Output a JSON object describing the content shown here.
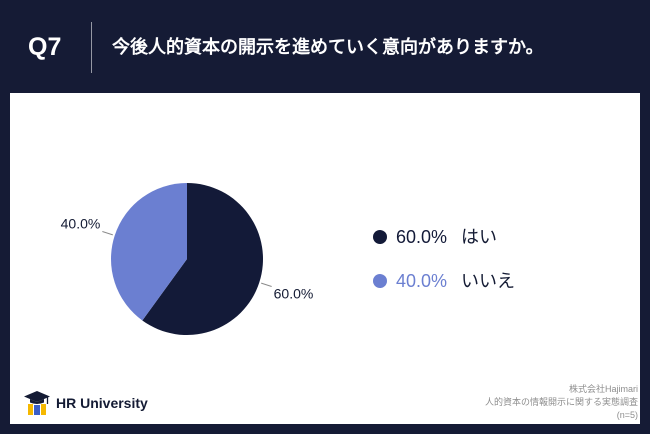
{
  "header": {
    "question_number": "Q7",
    "question": "今後人的資本の開示を進めていく意向がありますか。"
  },
  "chart_data": {
    "type": "pie",
    "categories": [
      "はい",
      "いいえ"
    ],
    "values": [
      60.0,
      40.0
    ],
    "data_labels": [
      "60.0%",
      "40.0%"
    ],
    "colors": [
      "#131a38",
      "#6b7fd1"
    ],
    "legend": {
      "placement": "right",
      "value_text_colors": [
        "#131a38",
        "#6b7fd1"
      ]
    }
  },
  "footer": {
    "logo": {
      "text": "HR University",
      "icon": "graduation-cap-icon"
    },
    "source": {
      "company": "株式会社Hajimari",
      "survey": "人的資本の情報開示に関する実態調査",
      "sample_size": "(n=5)"
    }
  },
  "theme": {
    "frame_background": "#151b35",
    "panel_background": "#ffffff",
    "text_dark": "#141b34",
    "source_text": "#8e8e8e",
    "logo_yellow": "#f5b800",
    "logo_blue": "#3a5fc8"
  }
}
